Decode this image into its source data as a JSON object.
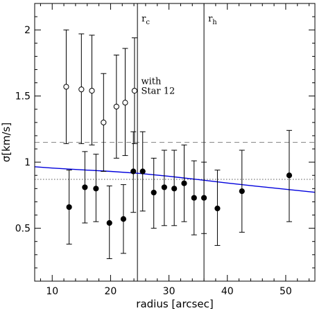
{
  "chart_data": {
    "type": "scatter",
    "xlabel": "radius [arcsec]",
    "ylabel": "σ[km/s]",
    "xlim": [
      7,
      55
    ],
    "ylim": [
      0.1,
      2.2
    ],
    "x_ticks": [
      10,
      20,
      30,
      40,
      50
    ],
    "y_ticks": [
      0.5,
      1,
      1.5,
      2
    ],
    "x_tick_labels": [
      "10",
      "20",
      "30",
      "40",
      "50"
    ],
    "y_tick_labels": [
      "0.5",
      "1",
      "1.5",
      "2"
    ],
    "grid": false,
    "series": [
      {
        "marker": "filled-circle",
        "color": "#000000",
        "points": [
          {
            "x": 12.9,
            "y": 0.66,
            "lo": 0.38,
            "hi": 0.94
          },
          {
            "x": 15.6,
            "y": 0.81,
            "lo": 0.54,
            "hi": 1.08
          },
          {
            "x": 17.5,
            "y": 0.8,
            "lo": 0.55,
            "hi": 1.06
          },
          {
            "x": 19.8,
            "y": 0.54,
            "lo": 0.27,
            "hi": 0.82
          },
          {
            "x": 22.2,
            "y": 0.57,
            "lo": 0.31,
            "hi": 0.83
          },
          {
            "x": 23.9,
            "y": 0.93,
            "lo": 0.62,
            "hi": 1.23
          },
          {
            "x": 25.5,
            "y": 0.93,
            "lo": 0.63,
            "hi": 1.23
          },
          {
            "x": 27.4,
            "y": 0.77,
            "lo": 0.5,
            "hi": 1.03
          },
          {
            "x": 29.2,
            "y": 0.81,
            "lo": 0.52,
            "hi": 1.09
          },
          {
            "x": 30.9,
            "y": 0.8,
            "lo": 0.52,
            "hi": 1.09
          },
          {
            "x": 32.6,
            "y": 0.84,
            "lo": 0.55,
            "hi": 1.13
          },
          {
            "x": 34.3,
            "y": 0.73,
            "lo": 0.45,
            "hi": 1.01
          },
          {
            "x": 36.0,
            "y": 0.73,
            "lo": 0.46,
            "hi": 1.0
          },
          {
            "x": 38.3,
            "y": 0.65,
            "lo": 0.37,
            "hi": 0.94
          },
          {
            "x": 42.5,
            "y": 0.78,
            "lo": 0.47,
            "hi": 1.09
          },
          {
            "x": 50.6,
            "y": 0.9,
            "lo": 0.55,
            "hi": 1.24
          }
        ]
      },
      {
        "marker": "open-circle",
        "color": "#000000",
        "points": [
          {
            "x": 12.4,
            "y": 1.57,
            "lo": 1.14,
            "hi": 2.0
          },
          {
            "x": 15.0,
            "y": 1.55,
            "lo": 1.14,
            "hi": 1.97
          },
          {
            "x": 16.8,
            "y": 1.54,
            "lo": 1.13,
            "hi": 1.96
          },
          {
            "x": 18.8,
            "y": 1.3,
            "lo": 0.93,
            "hi": 1.67
          },
          {
            "x": 21.0,
            "y": 1.42,
            "lo": 1.03,
            "hi": 1.81
          },
          {
            "x": 22.5,
            "y": 1.45,
            "lo": 1.05,
            "hi": 1.86
          },
          {
            "x": 24.1,
            "y": 1.54,
            "lo": 1.14,
            "hi": 1.94
          }
        ]
      }
    ],
    "model_curve": {
      "color": "#0000dd",
      "points": [
        [
          7,
          0.965
        ],
        [
          10,
          0.955
        ],
        [
          15,
          0.942
        ],
        [
          20,
          0.93
        ],
        [
          25,
          0.915
        ],
        [
          30,
          0.893
        ],
        [
          35,
          0.868
        ],
        [
          40,
          0.842
        ],
        [
          45,
          0.818
        ],
        [
          50,
          0.795
        ],
        [
          55,
          0.772
        ]
      ]
    },
    "hlines": [
      {
        "y": 1.15,
        "style": "dashed",
        "color": "#888888"
      },
      {
        "y": 0.87,
        "style": "dotted",
        "color": "#555555"
      }
    ],
    "vlines": [
      {
        "x": 24.6,
        "label": "r",
        "sub": "c",
        "color": "#000000"
      },
      {
        "x": 36.0,
        "label": "r",
        "sub": "h",
        "color": "#000000"
      }
    ],
    "annotation": {
      "lines": [
        "with",
        "Star 12"
      ],
      "x": 25.0,
      "y": 1.61
    }
  }
}
